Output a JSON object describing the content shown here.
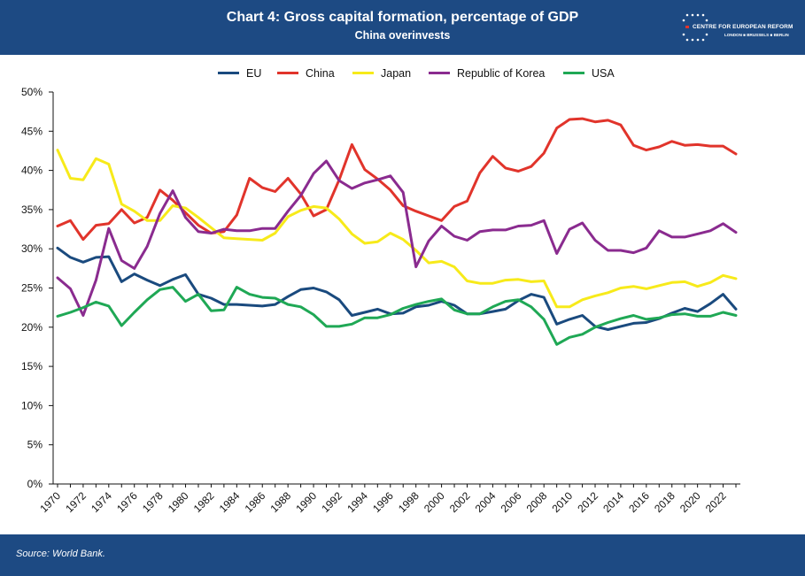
{
  "header": {
    "title": "Chart 4: Gross capital formation, percentage of GDP",
    "subtitle": "China overinvests",
    "logo": {
      "name": "CENTRE FOR EUROPEAN REFORM",
      "cities": "LONDON ■ BRUSSELS ■ BERLIN"
    }
  },
  "footer": {
    "source": "Source: World Bank."
  },
  "chart_data": {
    "type": "line",
    "title": "Chart 4: Gross capital formation, percentage of GDP",
    "subtitle": "China overinvests",
    "xlabel": "",
    "ylabel": "",
    "ylim": [
      0,
      50
    ],
    "yticks": [
      "0%",
      "5%",
      "10%",
      "15%",
      "20%",
      "25%",
      "30%",
      "35%",
      "40%",
      "45%",
      "50%"
    ],
    "xlim": [
      1970,
      2023
    ],
    "xticks": [
      "1970",
      "1972",
      "1974",
      "1976",
      "1978",
      "1980",
      "1982",
      "1984",
      "1986",
      "1988",
      "1990",
      "1992",
      "1994",
      "1996",
      "1998",
      "2000",
      "2002",
      "2004",
      "2006",
      "2008",
      "2010",
      "2012",
      "2014",
      "2016",
      "2018",
      "2020",
      "2022"
    ],
    "grid": false,
    "legend_position": "top",
    "x": [
      1970,
      1971,
      1972,
      1973,
      1974,
      1975,
      1976,
      1977,
      1978,
      1979,
      1980,
      1981,
      1982,
      1983,
      1984,
      1985,
      1986,
      1987,
      1988,
      1989,
      1990,
      1991,
      1992,
      1993,
      1994,
      1995,
      1996,
      1997,
      1998,
      1999,
      2000,
      2001,
      2002,
      2003,
      2004,
      2005,
      2006,
      2007,
      2008,
      2009,
      2010,
      2011,
      2012,
      2013,
      2014,
      2015,
      2016,
      2017,
      2018,
      2019,
      2020,
      2021,
      2022,
      2023
    ],
    "series": [
      {
        "name": "EU",
        "color": "#1a4a7e",
        "values": [
          30.1,
          28.9,
          28.3,
          28.9,
          29.0,
          25.8,
          26.8,
          26.0,
          25.3,
          26.1,
          26.7,
          24.2,
          23.7,
          22.9,
          22.9,
          22.8,
          22.7,
          22.9,
          23.9,
          24.8,
          25.0,
          24.5,
          23.5,
          21.5,
          21.9,
          22.3,
          21.7,
          21.8,
          22.6,
          22.8,
          23.3,
          22.8,
          21.7,
          21.7,
          22.0,
          22.3,
          23.4,
          24.2,
          23.8,
          20.4,
          21.0,
          21.5,
          20.1,
          19.7,
          20.1,
          20.5,
          20.6,
          21.1,
          21.8,
          22.4,
          22.0,
          23.0,
          24.2,
          22.3
        ]
      },
      {
        "name": "China",
        "color": "#e1342b",
        "values": [
          32.9,
          33.6,
          31.2,
          33.0,
          33.2,
          35.0,
          33.3,
          34.0,
          37.5,
          36.2,
          34.6,
          33.0,
          32.0,
          32.2,
          34.3,
          39.0,
          37.8,
          37.3,
          39.0,
          37.0,
          34.2,
          35.0,
          38.8,
          43.3,
          40.1,
          38.9,
          37.5,
          35.5,
          34.8,
          34.2,
          33.6,
          35.4,
          36.1,
          39.7,
          41.8,
          40.3,
          39.9,
          40.5,
          42.2,
          45.4,
          46.5,
          46.6,
          46.2,
          46.4,
          45.8,
          43.2,
          42.6,
          43.0,
          43.7,
          43.2,
          43.3,
          43.1,
          43.1,
          42.1
        ]
      },
      {
        "name": "Japan",
        "color": "#f7ea1a",
        "values": [
          42.6,
          39.0,
          38.8,
          41.5,
          40.8,
          35.7,
          34.8,
          33.6,
          33.6,
          35.5,
          35.2,
          34.0,
          32.7,
          31.4,
          31.3,
          31.2,
          31.1,
          32.0,
          34.1,
          34.9,
          35.4,
          35.2,
          33.8,
          31.9,
          30.7,
          30.9,
          32.0,
          31.2,
          29.8,
          28.2,
          28.4,
          27.7,
          25.9,
          25.6,
          25.6,
          26.0,
          26.1,
          25.8,
          25.9,
          22.6,
          22.6,
          23.5,
          24.0,
          24.4,
          25.0,
          25.2,
          24.9,
          25.3,
          25.7,
          25.8,
          25.2,
          25.7,
          26.6,
          26.2
        ]
      },
      {
        "name": "Republic of Korea",
        "color": "#8a2b8f",
        "values": [
          26.3,
          24.9,
          21.5,
          26.0,
          32.6,
          28.5,
          27.5,
          30.3,
          34.5,
          37.4,
          34.0,
          32.2,
          32.0,
          32.5,
          32.3,
          32.3,
          32.6,
          32.6,
          34.8,
          36.8,
          39.6,
          41.2,
          38.7,
          37.7,
          38.4,
          38.8,
          39.3,
          37.2,
          27.7,
          31.0,
          32.9,
          31.6,
          31.1,
          32.2,
          32.4,
          32.4,
          32.9,
          33.0,
          33.6,
          29.4,
          32.5,
          33.3,
          31.1,
          29.8,
          29.8,
          29.5,
          30.1,
          32.3,
          31.5,
          31.5,
          31.9,
          32.3,
          33.2,
          32.1
        ]
      },
      {
        "name": "USA",
        "color": "#1fa855",
        "values": [
          21.4,
          21.9,
          22.5,
          23.2,
          22.7,
          20.2,
          21.9,
          23.5,
          24.8,
          25.1,
          23.3,
          24.2,
          22.1,
          22.2,
          25.1,
          24.2,
          23.8,
          23.7,
          22.9,
          22.6,
          21.6,
          20.1,
          20.1,
          20.4,
          21.2,
          21.2,
          21.6,
          22.4,
          22.9,
          23.3,
          23.6,
          22.2,
          21.7,
          21.7,
          22.6,
          23.3,
          23.5,
          22.6,
          21.0,
          17.8,
          18.7,
          19.1,
          20.0,
          20.6,
          21.1,
          21.5,
          21.0,
          21.2,
          21.6,
          21.7,
          21.4,
          21.4,
          21.9,
          21.5
        ]
      }
    ]
  }
}
